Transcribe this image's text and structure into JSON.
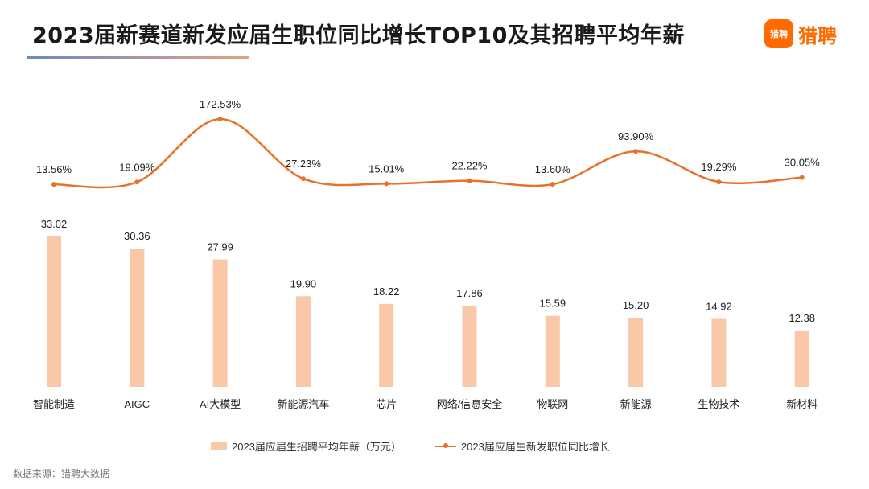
{
  "header": {
    "title": "2023届新赛道新发应届生职位同比增长TOP10及其招聘平均年薪",
    "logo_icon_text": "猎聘",
    "logo_text": "猎聘"
  },
  "colors": {
    "bar": "#f8c8a8",
    "line": "#e8712a",
    "brand": "#ff6a00"
  },
  "chart_data": {
    "type": "bar",
    "title": "2023届新赛道新发应届生职位同比增长TOP10及其招聘平均年薪",
    "categories": [
      "智能制造",
      "AIGC",
      "AI大模型",
      "新能源汽车",
      "芯片",
      "网络/信息安全",
      "物联网",
      "新能源",
      "生物技术",
      "新材料"
    ],
    "series": [
      {
        "name": "2023届应届生招聘平均年薪（万元）",
        "type": "bar",
        "values": [
          33.02,
          30.36,
          27.99,
          19.9,
          18.22,
          17.86,
          15.59,
          15.2,
          14.92,
          12.38
        ],
        "labels": [
          "33.02",
          "30.36",
          "27.99",
          "19.90",
          "18.22",
          "17.86",
          "15.59",
          "15.20",
          "14.92",
          "12.38"
        ]
      },
      {
        "name": "2023届应届生新发职位同比增长",
        "type": "line",
        "values": [
          13.56,
          19.09,
          172.53,
          27.23,
          15.01,
          22.22,
          13.6,
          93.9,
          19.29,
          30.05
        ],
        "labels": [
          "13.56%",
          "19.09%",
          "172.53%",
          "27.23%",
          "15.01%",
          "22.22%",
          "13.60%",
          "93.90%",
          "19.29%",
          "30.05%"
        ]
      }
    ],
    "bar_ylim": [
      0,
      33.02
    ],
    "line_ylim": [
      0,
      172.53
    ],
    "legend_position": "bottom"
  },
  "footer": {
    "source": "数据来源：猎聘大数据"
  }
}
